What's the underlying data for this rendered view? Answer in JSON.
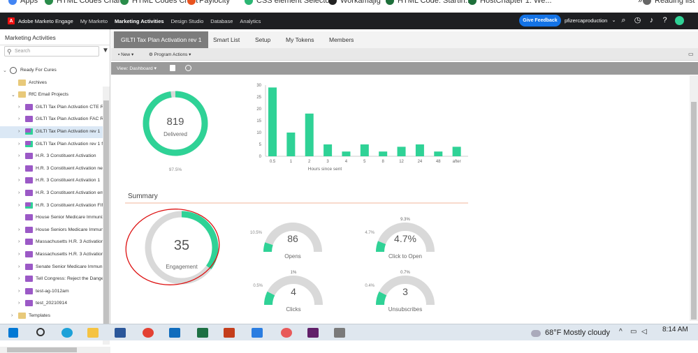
{
  "bookmarks": [
    {
      "label": "Apps",
      "color": "#4285f4"
    },
    {
      "label": "HTML Codes Chart",
      "color": "#2a8c4a"
    },
    {
      "label": "HTML Codes Chart",
      "color": "#2a8c4a"
    },
    {
      "label": "Paylocity",
      "color": "#e8531e"
    },
    {
      "label": "CSS element Selector",
      "color": "#2bb673"
    },
    {
      "label": "Workamajig",
      "color": "#222222"
    },
    {
      "label": "HTML Code: Startin...",
      "color": "#1d6f3a"
    },
    {
      "label": "HostChapter 1: We...",
      "color": "#1d6f3a"
    },
    {
      "label": "»",
      "color": "transparent"
    },
    {
      "label": "Reading list",
      "color": "#666666"
    }
  ],
  "topnav": {
    "brand": "Adobe Marketo Engage",
    "brand_letter": "A",
    "items": [
      "My Marketo",
      "Marketing Activities",
      "Design Studio",
      "Database",
      "Analytics"
    ],
    "active": "Marketing Activities",
    "feedback": "Give Feedback",
    "user": "pfizercaproduction"
  },
  "sidebar": {
    "title": "Marketing Activities",
    "search_placeholder": "Search",
    "items": [
      {
        "label": "Ready For Cures",
        "icon": "globe",
        "level": 0,
        "chev": "v"
      },
      {
        "label": "Archives",
        "icon": "folder",
        "level": 1,
        "chev": ""
      },
      {
        "label": "RfC Email Projects",
        "icon": "folder",
        "level": 1,
        "chev": "v"
      },
      {
        "label": "GILTI Tax Plan Activation CTE Re-",
        "icon": "program",
        "level": 2,
        "chev": ">"
      },
      {
        "label": "GILTI Tax Plan Activation FAC Re-",
        "icon": "program",
        "level": 2,
        "chev": ">"
      },
      {
        "label": "GILTI Tax Plan Activation rev 1",
        "icon": "program-check",
        "level": 2,
        "chev": ">",
        "selected": true
      },
      {
        "label": "GILTI Tax Plan Activation rev 1 fin",
        "icon": "program-check",
        "level": 2,
        "chev": ">"
      },
      {
        "label": "H.R. 3 Constituent Activation",
        "icon": "program",
        "level": 2,
        "chev": ">"
      },
      {
        "label": "H.R. 3 Constituent Activation new",
        "icon": "program",
        "level": 2,
        "chev": ">"
      },
      {
        "label": "H.R. 3 Constituent Activation 1",
        "icon": "program",
        "level": 2,
        "chev": ">"
      },
      {
        "label": "H.R. 3 Constituent Activation ema",
        "icon": "program",
        "level": 2,
        "chev": ">"
      },
      {
        "label": "H.R. 3 Constituent Activation FIN.",
        "icon": "program-check",
        "level": 2,
        "chev": ">"
      },
      {
        "label": "House Senior Medicare Immuniz",
        "icon": "program",
        "level": 2,
        "chev": ""
      },
      {
        "label": "House Seniors Medicare Immuni",
        "icon": "program",
        "level": 2,
        "chev": ">"
      },
      {
        "label": "Massachusetts H.R. 3 Activation 1",
        "icon": "program",
        "level": 2,
        "chev": ">"
      },
      {
        "label": "Massachusetts H.R. 3 Activation r",
        "icon": "program",
        "level": 2,
        "chev": ">"
      },
      {
        "label": "Senate Senior Medicare Immuniz",
        "icon": "program",
        "level": 2,
        "chev": ">"
      },
      {
        "label": "Tell Congress: Reject the Dangerc",
        "icon": "program",
        "level": 2,
        "chev": ">"
      },
      {
        "label": "test-ag-1012am",
        "icon": "program",
        "level": 2,
        "chev": ">"
      },
      {
        "label": "test_20210914",
        "icon": "program",
        "level": 2,
        "chev": ">"
      },
      {
        "label": "Templates",
        "icon": "folder",
        "level": 1,
        "chev": ">"
      }
    ]
  },
  "tabs": [
    "GILTI Tax Plan Activation rev 1",
    "Smart List",
    "Setup",
    "My Tokens",
    "Members"
  ],
  "toolbar": {
    "new": "New",
    "program_actions": "Program Actions"
  },
  "viewbar": {
    "view": "View: Dashboard"
  },
  "dashboard": {
    "delivered_value": "819",
    "delivered_label": "Delivered",
    "delivered_pct": "97.5%",
    "delivered_fraction": 0.975,
    "summary_title": "Summary",
    "engagement_value": "35",
    "engagement_label": "Engagement",
    "engagement_fraction": 0.35,
    "gauges": [
      {
        "value": "86",
        "label": "Opens",
        "pct": "10.5%",
        "fraction": 0.105
      },
      {
        "value": "4.7%",
        "label": "Click to Open",
        "pct": "4.7%",
        "top_pct": "9.3%",
        "fraction": 0.12
      },
      {
        "value": "4",
        "label": "Clicks",
        "pct": "0.5%",
        "top_pct": "1%",
        "fraction": 0.15
      },
      {
        "value": "3",
        "label": "Unsubscribes",
        "pct": "0.4%",
        "top_pct": "0.7%",
        "fraction": 0.15
      }
    ]
  },
  "chart_data": {
    "type": "bar",
    "categories": [
      "0.5",
      "1",
      "2",
      "3",
      "4",
      "5",
      "8",
      "12",
      "24",
      "48",
      "after"
    ],
    "values": [
      29,
      10,
      18,
      5,
      2,
      5,
      2,
      4,
      5,
      2,
      4
    ],
    "xlabel": "Hours since sent",
    "ylabel": "",
    "ylim": [
      0,
      30
    ],
    "yticks": [
      0,
      5,
      10,
      15,
      20,
      25,
      30
    ],
    "color": "#2fd296"
  },
  "taskbar": {
    "weather": "68°F  Mostly cloudy",
    "time": "8:14 AM"
  },
  "colors": {
    "accent": "#2fd296",
    "gauge_bg": "#d9d9d9",
    "annotation": "#d11"
  }
}
